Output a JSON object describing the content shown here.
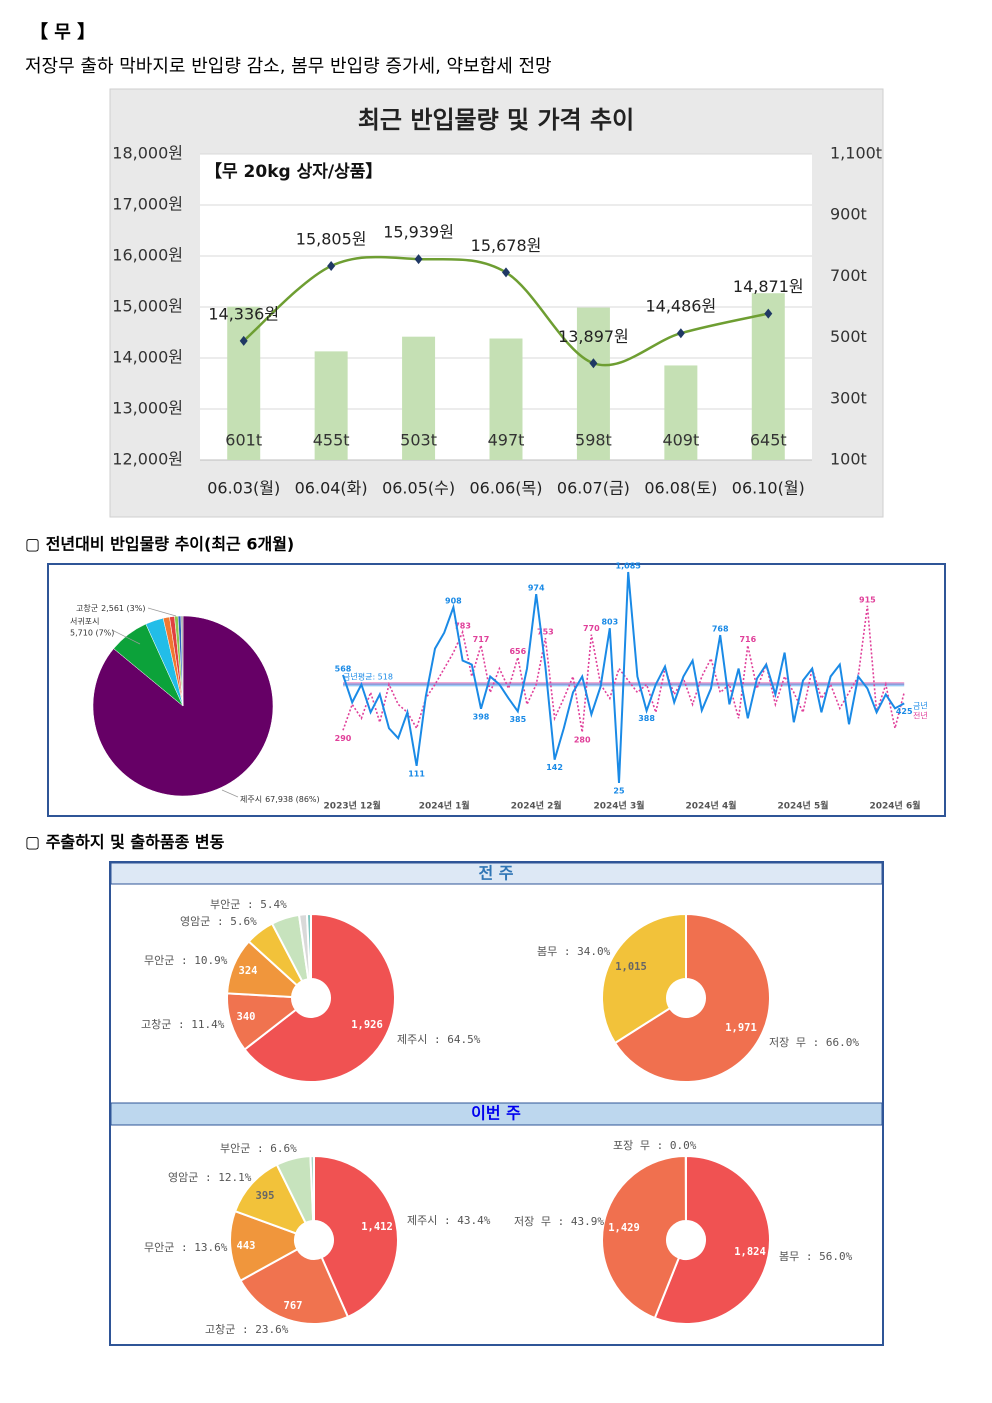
{
  "header": {
    "title": "【 무 】",
    "summary": "저장무 출하 막바지로 반입량 감소, 봄무 반입량 증가세, 약보합세 전망"
  },
  "sections": [
    "▢ 전년대비 반입물량 추이(최근 6개월)",
    "▢ 주출하지 및 출하품종 변동"
  ],
  "panels": [
    "전 주",
    "이번 주"
  ],
  "chart_data": [
    {
      "type": "combo",
      "title": "최근 반입물량 및 가격 추이",
      "subtitle": "【무 20kg 상자/상품】",
      "categories": [
        "06.03(월)",
        "06.04(화)",
        "06.05(수)",
        "06.06(목)",
        "06.07(금)",
        "06.08(토)",
        "06.10(월)"
      ],
      "series": [
        {
          "type": "bar",
          "axis": "y2",
          "color": "#c5e0b4",
          "values": [
            601,
            455,
            503,
            497,
            598,
            409,
            645
          ],
          "value_labels": [
            "601t",
            "455t",
            "503t",
            "497t",
            "598t",
            "409t",
            "645t"
          ]
        },
        {
          "type": "line",
          "smooth": true,
          "color": "#6e9e32",
          "marker_color": "#1f3864",
          "values": [
            14336,
            15805,
            15939,
            15678,
            13897,
            14486,
            14871
          ],
          "value_labels": [
            "14,336원",
            "15,805원",
            "15,939원",
            "15,678원",
            "13,897원",
            "14,486원",
            "14,871원"
          ]
        }
      ],
      "ylim": [
        12000,
        18000
      ],
      "yticks": [
        {
          "value": 12000,
          "label": "12,000원"
        },
        {
          "value": 13000,
          "label": "13,000원"
        },
        {
          "value": 14000,
          "label": "14,000원"
        },
        {
          "value": 15000,
          "label": "15,000원"
        },
        {
          "value": 16000,
          "label": "16,000원"
        },
        {
          "value": 17000,
          "label": "17,000원"
        },
        {
          "value": 18000,
          "label": "18,000원"
        }
      ],
      "y2lim": [
        100,
        1100
      ],
      "y2ticks": [
        {
          "value": 100,
          "label": "100t"
        },
        {
          "value": 300,
          "label": "300t"
        },
        {
          "value": 500,
          "label": "500t"
        },
        {
          "value": 700,
          "label": "700t"
        },
        {
          "value": 900,
          "label": "900t"
        },
        {
          "value": 1100,
          "label": "1,100t"
        }
      ],
      "grid": true
    },
    {
      "type": "pie",
      "categories": [
        "제주시",
        "서귀포시",
        "고창군",
        null,
        null,
        null,
        null,
        null
      ],
      "values": [
        67938,
        5710,
        2561,
        900,
        700,
        500,
        400,
        291
      ],
      "value_labels": [
        "67,938 (86%)",
        "5,710 (7%)",
        "2,561 (3%)",
        null,
        null,
        null,
        null,
        null
      ],
      "colors": [
        "#660066",
        "#0ca23a",
        "#22bde8",
        "#f07830",
        "#e04040",
        "#8cc850",
        "#2860c0",
        "#a0a0a0"
      ]
    },
    {
      "type": "line",
      "categories": [
        null,
        "2023년 12월",
        null,
        null,
        null,
        null,
        null,
        null,
        null,
        null,
        null,
        "2024년 1월",
        null,
        null,
        null,
        null,
        null,
        null,
        null,
        null,
        null,
        "2024년 2월",
        null,
        null,
        null,
        null,
        null,
        null,
        null,
        null,
        "2024년 3월",
        null,
        null,
        null,
        null,
        null,
        null,
        null,
        null,
        null,
        "2024년 4월",
        null,
        null,
        null,
        null,
        null,
        null,
        null,
        null,
        null,
        "2024년 5월",
        null,
        null,
        null,
        null,
        null,
        null,
        null,
        null,
        null,
        "2024년 6월",
        null
      ],
      "series": [
        {
          "name": "금년",
          "color": "#1a8ae6",
          "dash": false,
          "average": 518,
          "average_label": "금년평균: 518",
          "values": [
            568,
            430,
            520,
            380,
            470,
            300,
            250,
            380,
            111,
            460,
            700,
            780,
            908,
            640,
            620,
            398,
            560,
            520,
            450,
            385,
            600,
            974,
            610,
            142,
            300,
            480,
            560,
            370,
            510,
            803,
            25,
            1085,
            560,
            388,
            520,
            610,
            430,
            560,
            640,
            390,
            500,
            768,
            420,
            600,
            350,
            550,
            620,
            470,
            680,
            330,
            540,
            600,
            380,
            560,
            620,
            320,
            560,
            500,
            380,
            470,
            400,
            425
          ],
          "value_labels": [
            "568",
            null,
            null,
            null,
            null,
            null,
            null,
            null,
            "111",
            null,
            null,
            null,
            "908",
            null,
            null,
            "398",
            null,
            null,
            null,
            "385",
            null,
            "974",
            null,
            "142",
            null,
            null,
            null,
            null,
            null,
            "803",
            "25",
            "1,085",
            null,
            "388",
            null,
            null,
            null,
            null,
            null,
            null,
            null,
            "768",
            null,
            null,
            null,
            null,
            null,
            null,
            null,
            null,
            null,
            null,
            null,
            null,
            null,
            null,
            null,
            null,
            null,
            null,
            null,
            "425"
          ]
        },
        {
          "name": "전년",
          "color": "#e0409a",
          "dash": true,
          "average": 525,
          "values": [
            290,
            420,
            350,
            480,
            330,
            520,
            420,
            380,
            300,
            450,
            520,
            600,
            680,
            783,
            560,
            717,
            480,
            600,
            500,
            656,
            420,
            520,
            753,
            350,
            450,
            560,
            280,
            770,
            520,
            450,
            600,
            540,
            480,
            520,
            380,
            600,
            470,
            550,
            420,
            560,
            650,
            480,
            520,
            350,
            716,
            500,
            620,
            420,
            560,
            480,
            380,
            600,
            450,
            520,
            400,
            480,
            560,
            915,
            380,
            520,
            300,
            480
          ],
          "value_labels": [
            "290",
            null,
            null,
            null,
            null,
            null,
            null,
            null,
            null,
            null,
            null,
            null,
            null,
            "783",
            null,
            "717",
            null,
            null,
            null,
            "656",
            null,
            null,
            "753",
            null,
            null,
            null,
            "280",
            "770",
            null,
            null,
            null,
            null,
            null,
            null,
            null,
            null,
            null,
            null,
            null,
            null,
            null,
            null,
            null,
            null,
            "716",
            null,
            null,
            null,
            null,
            null,
            null,
            null,
            null,
            null,
            null,
            null,
            null,
            "915",
            null,
            null,
            null,
            null
          ]
        }
      ]
    },
    {
      "type": "donut",
      "categories": [
        "제주시 : 64.5%",
        "고창군 : 11.4%",
        "무안군 : 10.9%",
        "영암군 : 5.6%",
        "부안군 : 5.4%",
        null,
        null
      ],
      "values": [
        1926,
        340,
        324,
        167,
        161,
        45,
        23
      ],
      "value_labels": [
        "1,926",
        "340",
        "324",
        null,
        null,
        null,
        null
      ],
      "colors": [
        "#f05252",
        "#f0734f",
        "#f0963c",
        "#f2c23a",
        "#c7e3bd",
        "#d9d9d9",
        "#7fc6c0"
      ]
    },
    {
      "type": "donut",
      "categories": [
        "저장 무 : 66.0%",
        "봄무 : 34.0%"
      ],
      "values": [
        1971,
        1015
      ],
      "value_labels": [
        "1,971",
        "1,015"
      ],
      "colors": [
        "#f0704f",
        "#f2c23a"
      ]
    },
    {
      "type": "donut",
      "categories": [
        "제주시 : 43.4%",
        "고창군 : 23.6%",
        "무안군 : 13.6%",
        "영암군 : 12.1%",
        "부안군 : 6.6%",
        null
      ],
      "values": [
        1412,
        767,
        443,
        395,
        215,
        22
      ],
      "value_labels": [
        "1,412",
        "767",
        "443",
        "395",
        null,
        null
      ],
      "colors": [
        "#f05252",
        "#f0734f",
        "#f0963c",
        "#f2c23a",
        "#c7e3bd",
        "#a8d5c8"
      ]
    },
    {
      "type": "donut",
      "categories": [
        "봄무 : 56.0%",
        "저장 무 : 43.9%",
        "포장 무 : 0.0%"
      ],
      "values": [
        1824,
        1429,
        1
      ],
      "value_labels": [
        "1,824",
        "1,429",
        null
      ],
      "colors": [
        "#f05252",
        "#f0704f",
        "#f2c23a"
      ]
    }
  ]
}
